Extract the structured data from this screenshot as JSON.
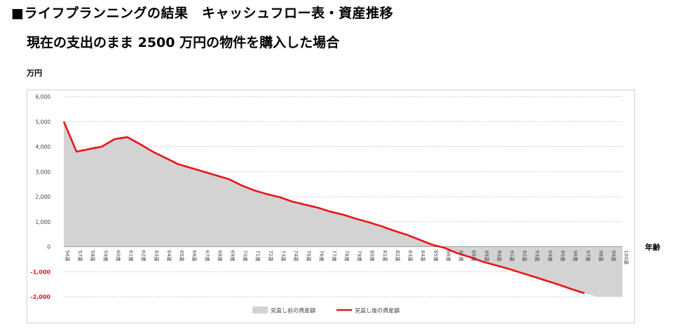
{
  "header": {
    "title": "■ライフプランニングの結果　キャッシュフロー表・資産推移",
    "subtitle": "現在の支出のまま 2500 万円の物件を購入した場合"
  },
  "chart_data": {
    "type": "area",
    "ylabel": "万円",
    "xlabel": "年齢",
    "ylim": [
      -2000,
      6000
    ],
    "yticks": [
      {
        "value": 6000,
        "label": "6,000"
      },
      {
        "value": 5000,
        "label": "5,000"
      },
      {
        "value": 4000,
        "label": "4,000"
      },
      {
        "value": 3000,
        "label": "3,000"
      },
      {
        "value": 2000,
        "label": "2,000"
      },
      {
        "value": 1000,
        "label": "1,000"
      },
      {
        "value": 0,
        "label": "0"
      },
      {
        "value": -1000,
        "label": "-1,000"
      },
      {
        "value": -2000,
        "label": "-2,000"
      }
    ],
    "grid": true,
    "legend_position": "bottom",
    "categories": [
      "56歳",
      "57歳",
      "58歳",
      "59歳",
      "60歳",
      "61歳",
      "62歳",
      "63歳",
      "64歳",
      "65歳",
      "66歳",
      "67歳",
      "68歳",
      "69歳",
      "70歳",
      "71歳",
      "72歳",
      "73歳",
      "74歳",
      "75歳",
      "76歳",
      "77歳",
      "78歳",
      "79歳",
      "80歳",
      "81歳",
      "82歳",
      "83歳",
      "84歳",
      "85歳",
      "86歳",
      "87歳",
      "88歳",
      "89歳",
      "90歳",
      "91歳",
      "92歳",
      "93歳",
      "94歳",
      "95歳",
      "96歳",
      "97歳",
      "98歳",
      "99歳",
      "100歳"
    ],
    "series": [
      {
        "name": "見直し前の資産額",
        "kind": "area",
        "color": "#d3d3d3",
        "values": [
          5000,
          3800,
          3900,
          4000,
          4300,
          4380,
          4100,
          3800,
          3550,
          3300,
          3150,
          3000,
          2850,
          2700,
          2450,
          2250,
          2100,
          1980,
          1800,
          1680,
          1560,
          1400,
          1280,
          1120,
          980,
          820,
          640,
          480,
          280,
          80,
          -50,
          -260,
          -420,
          -600,
          -740,
          -880,
          -1040,
          -1200,
          -1360,
          -1520,
          -1700,
          -1860,
          -2000,
          -2000,
          -2000
        ]
      },
      {
        "name": "見直し後の資産額",
        "kind": "line",
        "color": "#e8141a",
        "values": [
          5000,
          3800,
          3900,
          4000,
          4300,
          4380,
          4100,
          3800,
          3550,
          3300,
          3150,
          3000,
          2850,
          2700,
          2450,
          2250,
          2100,
          1980,
          1800,
          1680,
          1560,
          1400,
          1280,
          1120,
          980,
          820,
          640,
          480,
          280,
          80,
          -50,
          -260,
          -420,
          -600,
          -740,
          -880,
          -1040,
          -1200,
          -1360,
          -1520,
          -1700,
          -1860,
          null,
          null,
          null
        ]
      }
    ]
  }
}
